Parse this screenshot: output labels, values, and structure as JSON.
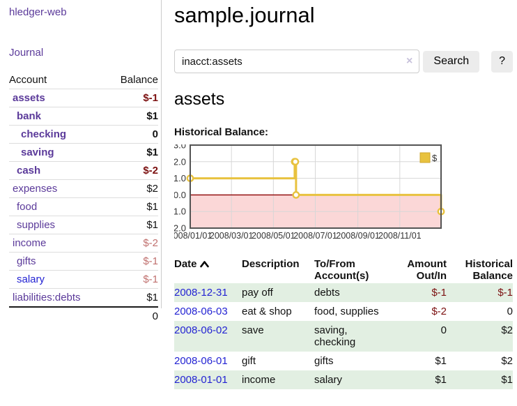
{
  "colors": {
    "link_purple": "#5b3a9a",
    "link_blue": "#2323d3",
    "negative_strong": "#7c1111",
    "negative_muted": "#c0706e",
    "row_green": "#e2efe2",
    "chart_line": "#e8c23f",
    "chart_negative_fill": "#fbd7d7",
    "chart_zero_line": "#8b0000",
    "chart_border": "#545454",
    "chart_grid": "#d7d7d7"
  },
  "sidebar": {
    "app_title": "hledger-web",
    "journal_link": "Journal",
    "accounts": {
      "col_account": "Account",
      "col_balance": "Balance",
      "rows": [
        {
          "name": "assets",
          "balance": "$-1",
          "indent": 1,
          "bold": true,
          "neg": "strong"
        },
        {
          "name": "bank",
          "balance": "$1",
          "indent": 2,
          "bold": true
        },
        {
          "name": "checking",
          "balance": "0",
          "indent": 3,
          "bold": true
        },
        {
          "name": "saving",
          "balance": "$1",
          "indent": 3,
          "bold": true
        },
        {
          "name": "cash",
          "balance": "$-2",
          "indent": 2,
          "bold": true,
          "neg": "strong"
        },
        {
          "name": "expenses",
          "balance": "$2",
          "indent": 1
        },
        {
          "name": "food",
          "balance": "$1",
          "indent": 2
        },
        {
          "name": "supplies",
          "balance": "$1",
          "indent": 2
        },
        {
          "name": "income",
          "balance": "$-2",
          "indent": 1,
          "neg": "muted"
        },
        {
          "name": "gifts",
          "balance": "$-1",
          "indent": 2,
          "neg": "muted"
        },
        {
          "name": "salary",
          "balance": "$-1",
          "indent": 2,
          "neg": "muted",
          "link_color": "blue"
        },
        {
          "name": "liabilities:debts",
          "balance": "$1",
          "indent": 1
        }
      ],
      "total": "0"
    }
  },
  "main": {
    "title": "sample.journal",
    "search": {
      "value": "inacct:assets",
      "clear_icon": "×",
      "search_button": "Search",
      "help_button": "?"
    },
    "account_heading": "assets",
    "chart_title": "Historical Balance:"
  },
  "chart_data": {
    "type": "line",
    "step": true,
    "title": "Historical Balance of assets",
    "x_range": [
      "2008-01-01",
      "2008-12-31"
    ],
    "ylim": [
      -2,
      3
    ],
    "y_ticks": [
      {
        "v": 3,
        "label": "3.0"
      },
      {
        "v": 2,
        "label": "2.0"
      },
      {
        "v": 1,
        "label": "1.0"
      },
      {
        "v": 0,
        "label": "0.0"
      },
      {
        "v": -1,
        "label": "-1.0"
      },
      {
        "v": -2,
        "label": "-2.0"
      }
    ],
    "x_ticks": [
      {
        "date": "2008-01-01",
        "label": "2008/01/01"
      },
      {
        "date": "2008-03-01",
        "label": "2008/03/01"
      },
      {
        "date": "2008-05-01",
        "label": "2008/05/01"
      },
      {
        "date": "2008-07-01",
        "label": "2008/07/01"
      },
      {
        "date": "2008-09-01",
        "label": "2008/09/01"
      },
      {
        "date": "2008-11-01",
        "label": "2008/11/01"
      }
    ],
    "legend": {
      "position": "top-right",
      "entries": [
        {
          "label": "$"
        }
      ]
    },
    "grid": true,
    "negative_region_shaded": true,
    "series": [
      {
        "name": "$",
        "points": [
          [
            "2008-01-01",
            1
          ],
          [
            "2008-06-01",
            2
          ],
          [
            "2008-06-02",
            2
          ],
          [
            "2008-06-03",
            0
          ],
          [
            "2008-12-31",
            -1
          ]
        ]
      }
    ]
  },
  "register": {
    "headers": {
      "date": "Date",
      "description": "Description",
      "accounts": "To/From Account(s)",
      "amount": "Amount Out/In",
      "balance": "Historical Balance"
    },
    "sort": {
      "column": "date",
      "direction": "ascending"
    },
    "rows": [
      {
        "date": "2008-12-31",
        "description": "pay off",
        "accounts": "debts",
        "amount": "$-1",
        "amount_neg": true,
        "balance": "$-1",
        "balance_neg": true
      },
      {
        "date": "2008-06-03",
        "description": "eat & shop",
        "accounts": "food, supplies",
        "amount": "$-2",
        "amount_neg": true,
        "balance": "0"
      },
      {
        "date": "2008-06-02",
        "description": "save",
        "accounts": "saving, checking",
        "amount": "0",
        "balance": "$2"
      },
      {
        "date": "2008-06-01",
        "description": "gift",
        "accounts": "gifts",
        "amount": "$1",
        "balance": "$2"
      },
      {
        "date": "2008-01-01",
        "description": "income",
        "accounts": "salary",
        "amount": "$1",
        "balance": "$1"
      }
    ]
  }
}
